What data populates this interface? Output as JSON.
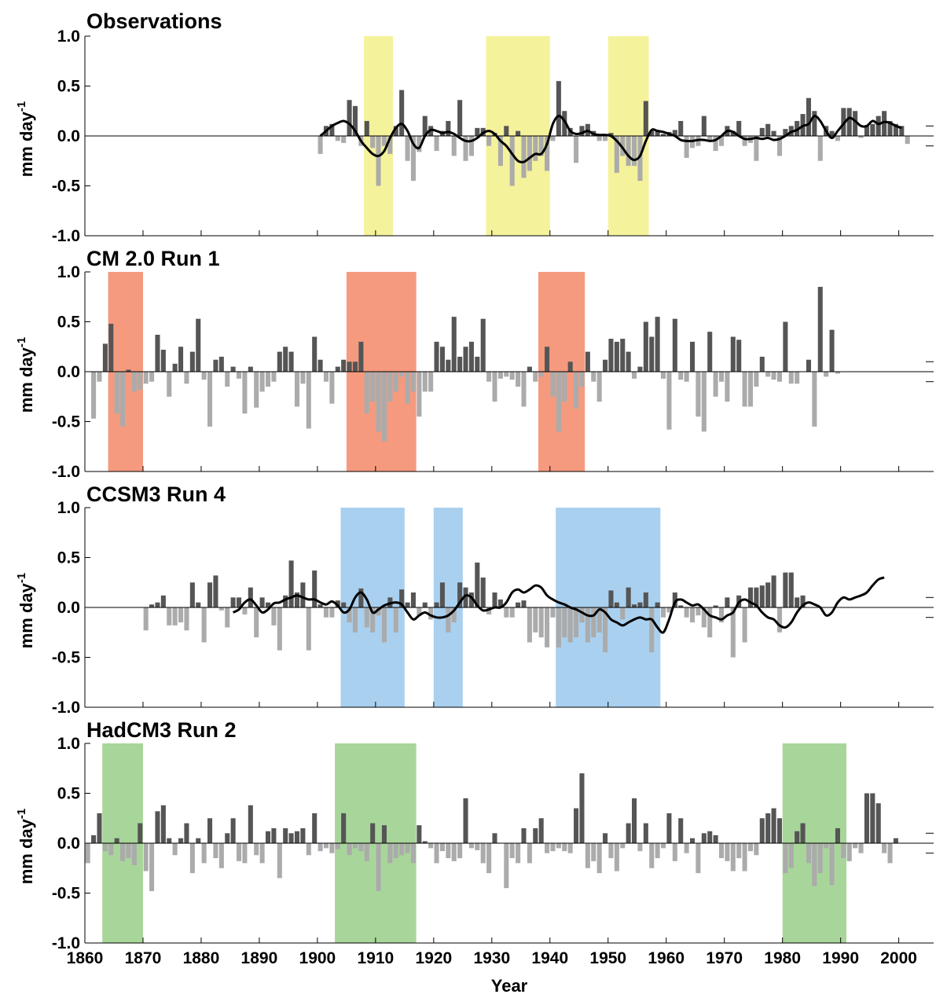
{
  "chart_data": [
    {
      "type": "bar",
      "title": "Observations",
      "ylabel": "mm day-1",
      "xlim": [
        1860,
        2006
      ],
      "ylim": [
        -1.0,
        1.0
      ],
      "yticks": [
        "1.0",
        "0.5",
        "0.0",
        "-0.5",
        "-1.0"
      ],
      "shade_color": "#f5f29c",
      "pos_color": "#555555",
      "neg_color": "#ababab",
      "highlight_periods": [
        [
          1908,
          1913
        ],
        [
          1929,
          1940
        ],
        [
          1950,
          1957
        ]
      ],
      "start_year": 1900,
      "values": [
        -0.18,
        0.1,
        0.12,
        -0.05,
        -0.07,
        0.36,
        0.3,
        -0.1,
        0.15,
        -0.12,
        -0.5,
        -0.1,
        -0.18,
        0.1,
        0.46,
        -0.25,
        -0.45,
        -0.16,
        0.2,
        0.1,
        -0.15,
        0.05,
        0.15,
        -0.2,
        0.36,
        -0.25,
        -0.2,
        0.08,
        0.08,
        -0.1,
        0.03,
        -0.3,
        0.1,
        -0.5,
        0.05,
        -0.42,
        -0.35,
        -0.25,
        -0.2,
        -0.35,
        -0.05,
        0.55,
        0.25,
        0.08,
        -0.27,
        0.1,
        0.12,
        0.05,
        -0.05,
        -0.05,
        0.03,
        -0.37,
        -0.2,
        -0.3,
        -0.3,
        -0.45,
        0.35,
        0.05,
        0.05,
        0.02,
        0.04,
        0.06,
        0.15,
        -0.22,
        -0.12,
        -0.1,
        0.2,
        -0.05,
        -0.15,
        -0.1,
        0.1,
        0.05,
        0.15,
        -0.1,
        -0.07,
        -0.25,
        0.08,
        0.12,
        0.05,
        -0.2,
        0.07,
        0.1,
        0.15,
        0.22,
        0.38,
        0.25,
        -0.25,
        0.1,
        0.05,
        -0.05,
        0.28,
        0.28,
        0.25,
        -0.02,
        0.1,
        0.12,
        0.2,
        0.25,
        0.15,
        0.12,
        0.1,
        -0.08
      ],
      "smooth": [
        0.0,
        0.05,
        0.1,
        0.13,
        0.15,
        0.12,
        0.05,
        -0.05,
        -0.12,
        -0.18,
        -0.2,
        -0.15,
        -0.02,
        0.08,
        0.12,
        0.05,
        -0.08,
        -0.12,
        0.0,
        0.06,
        0.05,
        0.03,
        0.04,
        0.02,
        -0.02,
        -0.05,
        -0.05,
        -0.02,
        0.03,
        0.05,
        0.02,
        -0.05,
        -0.1,
        -0.18,
        -0.25,
        -0.26,
        -0.22,
        -0.18,
        -0.18,
        -0.08,
        0.12,
        0.2,
        0.15,
        0.05,
        0.02,
        0.03,
        0.05,
        0.02,
        0.01,
        0.01,
        0.0,
        -0.05,
        -0.12,
        -0.2,
        -0.24,
        -0.2,
        -0.05,
        0.06,
        0.05,
        0.04,
        0.02,
        0.0,
        -0.04,
        -0.05,
        -0.05,
        -0.04,
        -0.04,
        -0.05,
        -0.04,
        0.0,
        0.05,
        0.04,
        0.0,
        -0.03,
        -0.03,
        -0.02,
        -0.03,
        -0.02,
        -0.04,
        -0.03,
        0.0,
        0.04,
        0.06,
        0.1,
        0.12,
        0.2,
        0.15,
        0.05,
        -0.02,
        0.05,
        0.12,
        0.18,
        0.15,
        0.1,
        0.1,
        0.15,
        0.12,
        0.14,
        0.13,
        0.1,
        0.08
      ],
      "smooth_start": 1900
    },
    {
      "type": "bar",
      "title": "CM 2.0 Run 1",
      "ylabel": "mm day-1",
      "xlim": [
        1860,
        2006
      ],
      "ylim": [
        -1.0,
        1.0
      ],
      "yticks": [
        "1.0",
        "0.5",
        "0.0",
        "-0.5",
        "-1.0"
      ],
      "shade_color": "#f59a7e",
      "pos_color": "#555555",
      "neg_color": "#ababab",
      "highlight_periods": [
        [
          1864,
          1870
        ],
        [
          1905,
          1917
        ],
        [
          1938,
          1946
        ]
      ],
      "start_year": 1861,
      "values": [
        -0.47,
        -0.1,
        0.28,
        0.48,
        -0.42,
        -0.55,
        0.02,
        -0.2,
        -0.18,
        -0.12,
        -0.1,
        0.37,
        0.22,
        -0.25,
        0.08,
        0.25,
        -0.12,
        0.2,
        0.53,
        -0.08,
        -0.55,
        0.12,
        0.15,
        -0.15,
        0.05,
        -0.07,
        -0.42,
        0.05,
        -0.36,
        -0.2,
        -0.15,
        -0.1,
        0.2,
        0.25,
        0.2,
        -0.35,
        -0.12,
        -0.57,
        0.35,
        0.12,
        -0.1,
        -0.32,
        0.05,
        0.12,
        0.1,
        0.1,
        0.3,
        -0.42,
        -0.3,
        -0.6,
        -0.7,
        -0.3,
        -0.2,
        -0.05,
        -0.32,
        -0.2,
        -0.45,
        -0.2,
        -0.2,
        0.3,
        0.25,
        0.12,
        0.55,
        0.15,
        0.25,
        0.3,
        0.15,
        0.53,
        -0.1,
        -0.3,
        -0.07,
        -0.05,
        -0.08,
        -0.15,
        -0.35,
        0.05,
        -0.1,
        -0.05,
        0.25,
        -0.25,
        -0.6,
        -0.3,
        0.1,
        -0.37,
        -0.15,
        0.2,
        -0.1,
        -0.3,
        0.12,
        0.33,
        0.3,
        0.33,
        0.2,
        -0.07,
        0.05,
        0.5,
        0.35,
        0.55,
        -0.07,
        -0.58,
        0.53,
        -0.08,
        -0.1,
        0.3,
        -0.45,
        -0.6,
        0.4,
        -0.25,
        -0.1,
        -0.3,
        0.35,
        0.32,
        -0.35,
        -0.35,
        -0.15,
        0.15,
        -0.05,
        -0.08,
        -0.1,
        0.5,
        -0.12,
        -0.12,
        0.0,
        0.12,
        -0.55,
        0.85,
        -0.05,
        0.42,
        -0.02
      ]
    },
    {
      "type": "bar",
      "title": "CCSM3 Run 4",
      "ylabel": "mm day-1",
      "xlim": [
        1860,
        2006
      ],
      "ylim": [
        -1.0,
        1.0
      ],
      "yticks": [
        "1.0",
        "0.5",
        "0.0",
        "-0.5",
        "-1.0"
      ],
      "shade_color": "#a9d0ef",
      "pos_color": "#555555",
      "neg_color": "#ababab",
      "highlight_periods": [
        [
          1904,
          1915
        ],
        [
          1920,
          1925
        ],
        [
          1941,
          1959
        ]
      ],
      "start_year": 1870,
      "values": [
        -0.23,
        0.03,
        0.05,
        0.12,
        -0.18,
        -0.18,
        -0.15,
        -0.23,
        0.25,
        0.05,
        -0.35,
        0.25,
        0.32,
        -0.03,
        -0.2,
        0.1,
        0.1,
        -0.07,
        0.2,
        -0.3,
        0.1,
        0.05,
        -0.18,
        -0.43,
        0.12,
        0.47,
        0.15,
        0.25,
        -0.43,
        0.37,
        0.03,
        -0.1,
        -0.1,
        0.07,
        0.05,
        -0.15,
        -0.25,
        0.19,
        -0.2,
        -0.25,
        -0.08,
        -0.35,
        0.1,
        -0.25,
        0.18,
        0.05,
        0.15,
        -0.08,
        0.05,
        -0.12,
        0.05,
        0.25,
        -0.25,
        -0.15,
        0.25,
        0.2,
        0.15,
        0.45,
        0.3,
        -0.07,
        0.15,
        0.08,
        -0.1,
        -0.1,
        0.05,
        0.07,
        -0.35,
        -0.25,
        -0.3,
        -0.4,
        -0.1,
        -0.4,
        -0.3,
        -0.35,
        -0.3,
        -0.15,
        -0.35,
        -0.3,
        -0.25,
        -0.45,
        0.17,
        0.05,
        -0.12,
        0.2,
        0.03,
        0.05,
        0.15,
        -0.45,
        0.05,
        -0.1,
        -0.05,
        0.15,
        0.02,
        -0.1,
        -0.15,
        -0.08,
        -0.2,
        -0.3,
        0.02,
        -0.15,
        0.1,
        -0.5,
        0.12,
        -0.35,
        0.2,
        0.2,
        0.22,
        0.25,
        0.32,
        -0.25,
        0.35,
        0.35,
        0.1,
        0.12
      ],
      "smooth": [
        -0.05,
        -0.02,
        0.05,
        0.08,
        0.02,
        -0.05,
        -0.02,
        0.04,
        0.05,
        0.08,
        0.1,
        0.12,
        0.1,
        0.08,
        0.08,
        0.05,
        0.03,
        0.06,
        0.02,
        -0.05,
        -0.02,
        0.1,
        0.15,
        0.08,
        -0.05,
        -0.02,
        0.02,
        0.04,
        0.05,
        0.03,
        -0.05,
        -0.12,
        -0.08,
        -0.05,
        -0.08,
        -0.1,
        -0.1,
        -0.08,
        -0.03,
        0.05,
        0.12,
        0.1,
        0.02,
        -0.03,
        -0.02,
        0.0,
        0.0,
        0.05,
        0.15,
        0.18,
        0.15,
        0.18,
        0.22,
        0.2,
        0.12,
        0.08,
        0.05,
        0.03,
        0.0,
        -0.02,
        -0.05,
        -0.08,
        -0.08,
        -0.02,
        -0.05,
        -0.12,
        -0.15,
        -0.18,
        -0.15,
        -0.12,
        -0.1,
        -0.12,
        -0.12,
        -0.2,
        -0.25,
        -0.12,
        0.05,
        0.08,
        0.05,
        0.02,
        0.03,
        -0.02,
        -0.08,
        -0.1,
        -0.12,
        -0.08,
        -0.05,
        0.05,
        0.08,
        0.05,
        0.02,
        -0.05,
        -0.1,
        -0.12,
        -0.18,
        -0.2,
        -0.15,
        -0.05,
        0.02,
        0.05,
        0.03,
        0.0,
        -0.08,
        -0.05,
        0.05,
        0.1,
        0.08,
        0.1,
        0.12,
        0.15,
        0.22,
        0.28,
        0.3
      ],
      "smooth_start": 1885
    },
    {
      "type": "bar",
      "title": "HadCM3 Run 2",
      "ylabel": "mm day-1",
      "xlabel": "Year",
      "xlim": [
        1860,
        2006
      ],
      "ylim": [
        -1.0,
        1.0
      ],
      "yticks": [
        "1.0",
        "0.5",
        "0.0",
        "-0.5",
        "-1.0"
      ],
      "xticks": [
        "1860",
        "1870",
        "1880",
        "1890",
        "1900",
        "1910",
        "1920",
        "1930",
        "1940",
        "1950",
        "1960",
        "1970",
        "1980",
        "1990",
        "2000"
      ],
      "shade_color": "#a8d69a",
      "pos_color": "#555555",
      "neg_color": "#ababab",
      "highlight_periods": [
        [
          1863,
          1870
        ],
        [
          1903,
          1917
        ],
        [
          1980,
          1991
        ]
      ],
      "start_year": 1860,
      "values": [
        -0.2,
        0.08,
        0.3,
        -0.08,
        -0.12,
        0.05,
        -0.18,
        -0.15,
        -0.22,
        0.2,
        -0.28,
        -0.48,
        0.32,
        0.38,
        0.05,
        -0.12,
        0.05,
        0.2,
        -0.3,
        0.05,
        -0.2,
        0.25,
        -0.15,
        -0.25,
        0.1,
        0.25,
        -0.18,
        -0.2,
        0.38,
        -0.12,
        -0.2,
        0.12,
        0.15,
        -0.35,
        0.15,
        0.1,
        0.12,
        0.15,
        -0.12,
        0.3,
        -0.08,
        -0.05,
        -0.1,
        -0.06,
        0.3,
        -0.12,
        -0.05,
        -0.08,
        -0.18,
        0.2,
        -0.48,
        0.18,
        -0.2,
        -0.15,
        -0.12,
        -0.1,
        -0.2,
        0.18,
        0.02,
        -0.05,
        -0.2,
        -0.08,
        -0.15,
        -0.18,
        -0.15,
        0.45,
        -0.05,
        -0.07,
        -0.2,
        -0.3,
        0.1,
        0.0,
        -0.45,
        -0.15,
        -0.2,
        0.15,
        -0.2,
        0.15,
        0.25,
        -0.1,
        -0.08,
        -0.05,
        -0.08,
        -0.1,
        0.35,
        0.7,
        -0.25,
        -0.18,
        -0.3,
        0.1,
        -0.15,
        -0.28,
        -0.05,
        0.2,
        0.45,
        -0.08,
        0.2,
        -0.25,
        -0.15,
        -0.05,
        0.3,
        -0.18,
        0.25,
        -0.1,
        0.05,
        -0.3,
        0.1,
        0.12,
        0.08,
        -0.15,
        -0.18,
        -0.28,
        -0.15,
        -0.28,
        -0.08,
        -0.12,
        0.25,
        0.3,
        0.35,
        0.25,
        -0.3,
        -0.25,
        0.12,
        0.2,
        -0.2,
        -0.43,
        -0.3,
        -0.05,
        -0.42,
        0.15,
        -0.15,
        -0.18,
        -0.05,
        -0.1,
        0.5,
        0.5,
        0.4,
        -0.1,
        -0.2,
        0.05
      ]
    }
  ]
}
